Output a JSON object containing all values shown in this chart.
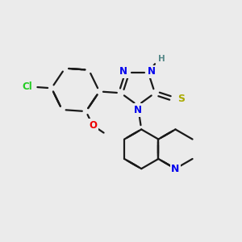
{
  "background_color": "#ebebeb",
  "bond_color": "#1a1a1a",
  "atom_colors": {
    "N": "#0000ee",
    "O": "#ee0000",
    "S": "#aaaa00",
    "Cl": "#22cc22",
    "H": "#558888",
    "C": "#1a1a1a"
  },
  "figsize": [
    3.0,
    3.0
  ],
  "dpi": 100
}
